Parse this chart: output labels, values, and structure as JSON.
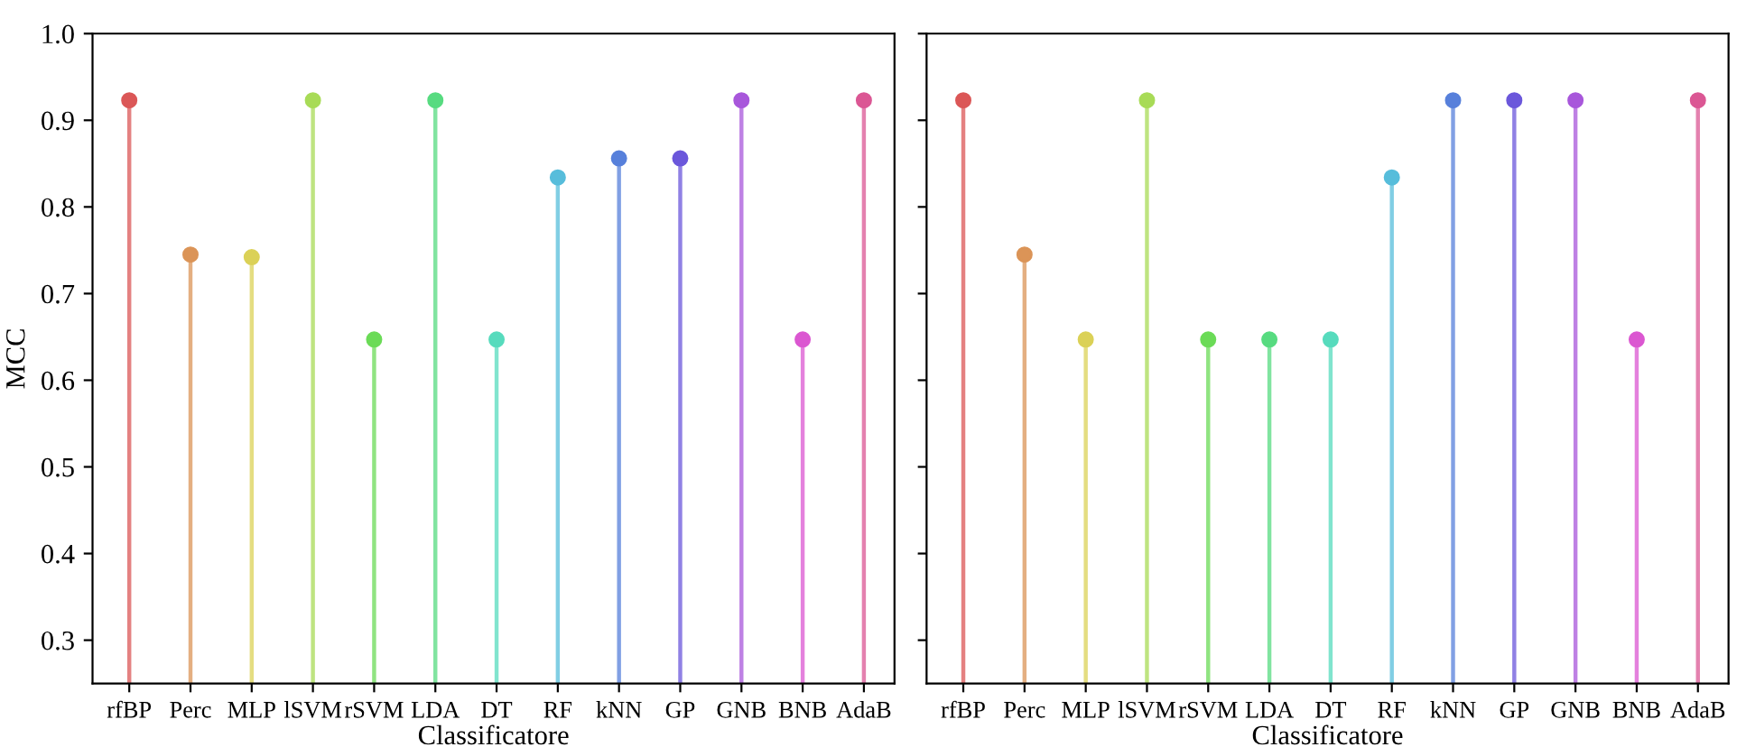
{
  "chart_data": [
    {
      "type": "lollipop",
      "xlabel": "Classificatore",
      "ylabel": "MCC",
      "categories": [
        "rfBP",
        "Perc",
        "MLP",
        "lSVM",
        "rSVM",
        "LDA",
        "DT",
        "RF",
        "kNN",
        "GP",
        "GNB",
        "BNB",
        "AdaB"
      ],
      "values": [
        0.923,
        0.745,
        0.742,
        0.923,
        0.647,
        0.923,
        0.647,
        0.834,
        0.856,
        0.856,
        0.923,
        0.647,
        0.923
      ],
      "colors": [
        "#db5757",
        "#db9457",
        "#dbd157",
        "#a8db57",
        "#6bdb57",
        "#57db80",
        "#57dbbd",
        "#57bddb",
        "#5780db",
        "#6b57db",
        "#a857db",
        "#db57d1",
        "#db5794"
      ],
      "ylim": [
        0.25,
        1.0
      ],
      "yticks": [
        0.3,
        0.4,
        0.5,
        0.6,
        0.7,
        0.8,
        0.9,
        {
          "value": 1.0,
          "label": "1.0"
        }
      ],
      "grid": false,
      "marker": "circle"
    },
    {
      "type": "lollipop",
      "xlabel": "Classificatore",
      "categories": [
        "rfBP",
        "Perc",
        "MLP",
        "lSVM",
        "rSVM",
        "LDA",
        "DT",
        "RF",
        "kNN",
        "GP",
        "GNB",
        "BNB",
        "AdaB"
      ],
      "values": [
        0.923,
        0.745,
        0.647,
        0.923,
        0.647,
        0.647,
        0.647,
        0.834,
        0.923,
        0.923,
        0.923,
        0.647,
        0.923
      ],
      "colors": [
        "#db5757",
        "#db9457",
        "#dbd157",
        "#a8db57",
        "#6bdb57",
        "#57db80",
        "#57dbbd",
        "#57bddb",
        "#5780db",
        "#6b57db",
        "#a857db",
        "#db57d1",
        "#db5794"
      ],
      "ylim": [
        0.25,
        1.0
      ],
      "yticks": [
        0.3,
        0.4,
        0.5,
        0.6,
        0.7,
        0.8,
        0.9,
        1.0
      ],
      "grid": false,
      "marker": "circle",
      "tick_labels": "x"
    }
  ]
}
